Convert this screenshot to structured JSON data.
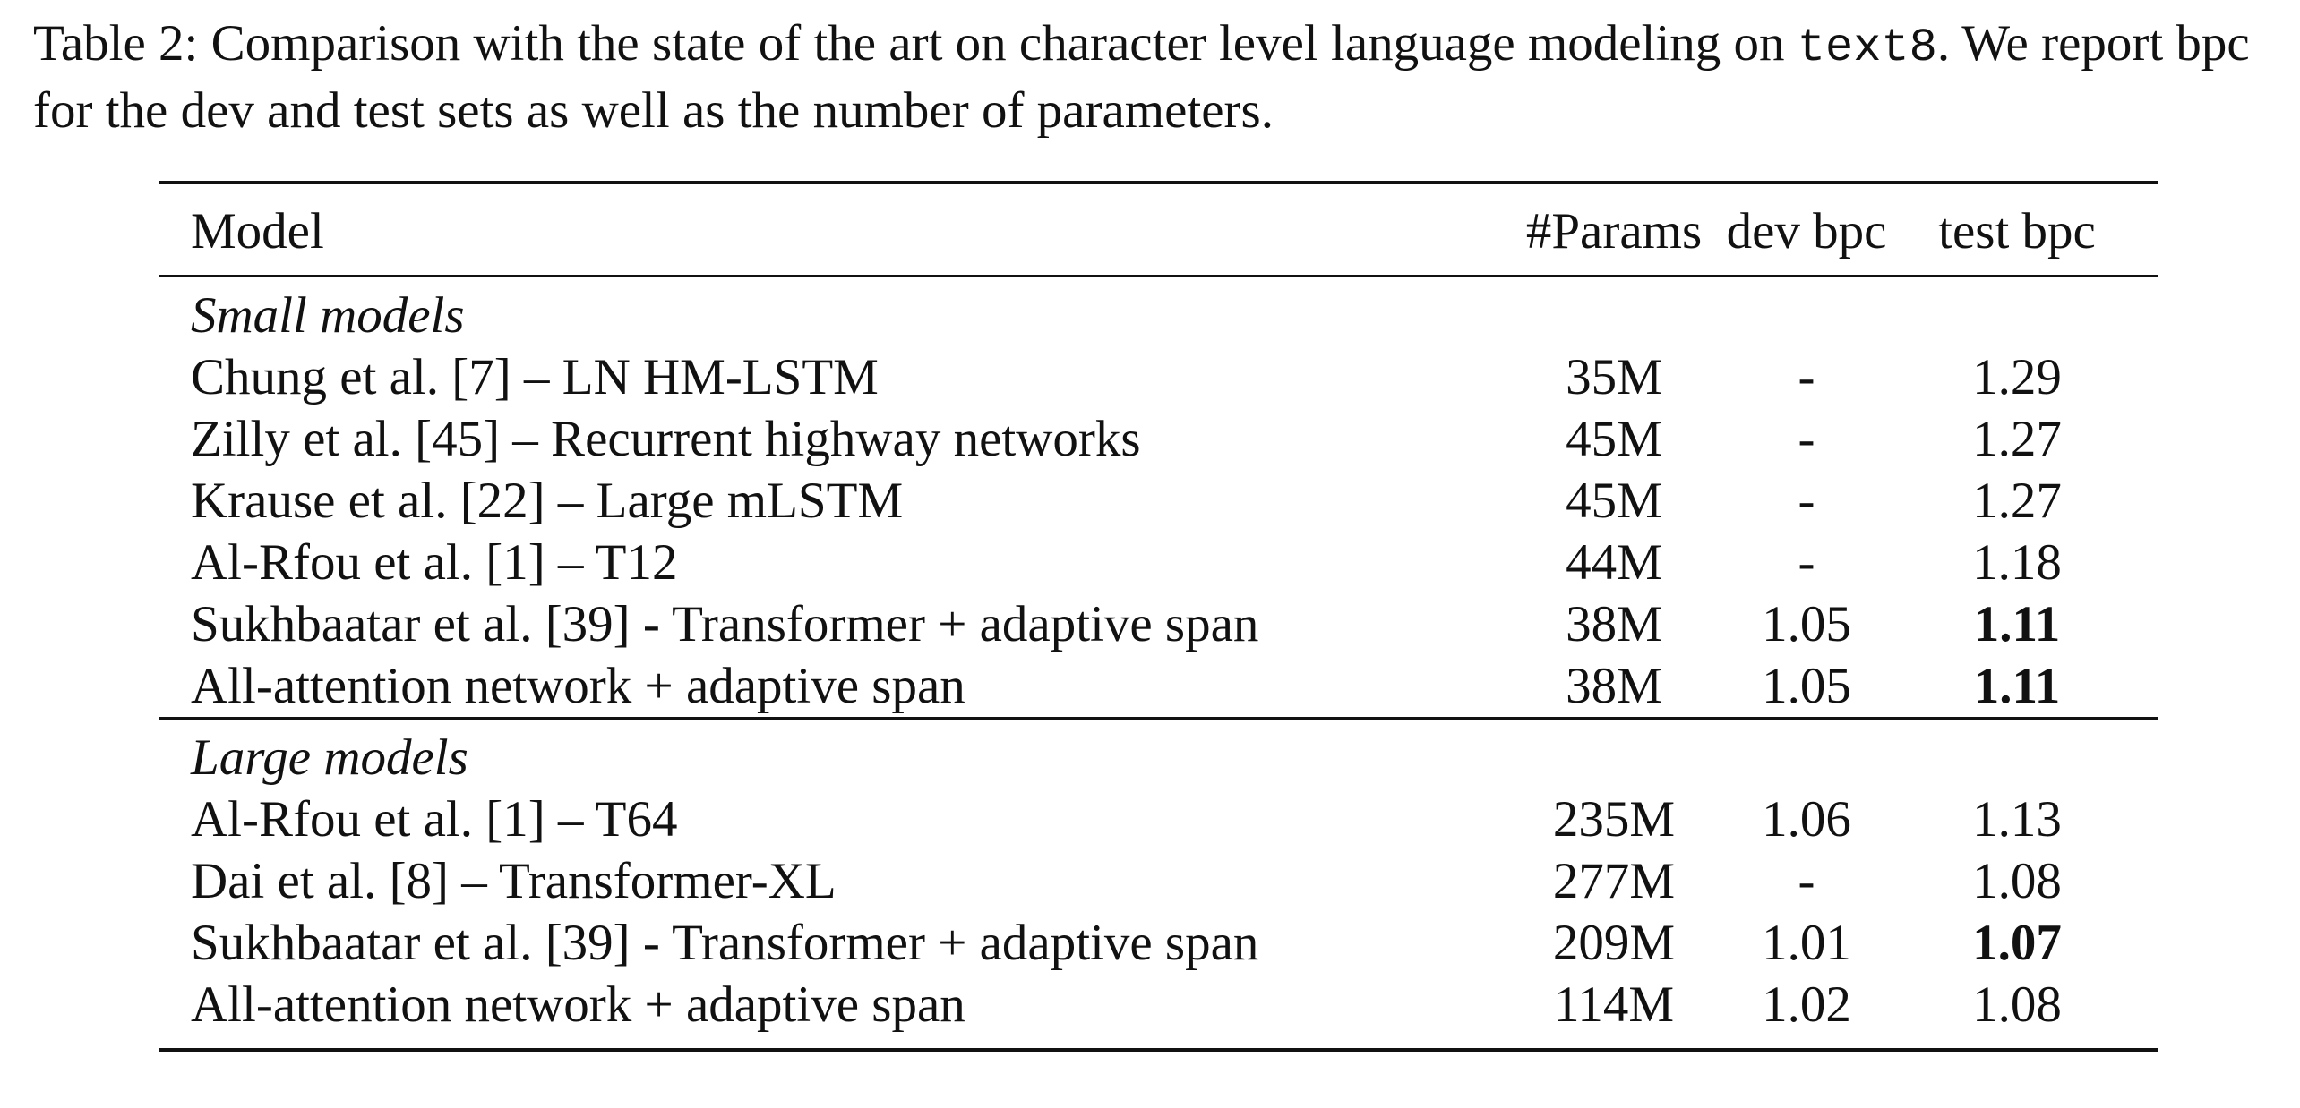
{
  "caption": {
    "prefix": "Table 2:  Comparison with the state of the art on character level language modeling on ",
    "dataset": "text8",
    "suffix": ". We report bpc for the dev and test sets as well as the number of parameters."
  },
  "table": {
    "headers": [
      "Model",
      "#Params",
      "dev bpc",
      "test bpc"
    ],
    "sections": [
      {
        "title": "Small models",
        "rows": [
          {
            "model": "Chung et al. [7] – LN HM-LSTM",
            "params": "35M",
            "dev": "-",
            "test": "1.29",
            "test_bold": false
          },
          {
            "model": "Zilly et al. [45] – Recurrent highway networks",
            "params": "45M",
            "dev": "-",
            "test": "1.27",
            "test_bold": false
          },
          {
            "model": "Krause et al. [22] – Large mLSTM",
            "params": "45M",
            "dev": "-",
            "test": "1.27",
            "test_bold": false
          },
          {
            "model": "Al-Rfou et al. [1] – T12",
            "params": "44M",
            "dev": "-",
            "test": "1.18",
            "test_bold": false
          },
          {
            "model": "Sukhbaatar et al. [39] - Transformer + adaptive span",
            "params": "38M",
            "dev": "1.05",
            "test": "1.11",
            "test_bold": true
          },
          {
            "model": "All-attention network + adaptive span",
            "params": "38M",
            "dev": "1.05",
            "test": "1.11",
            "test_bold": true
          }
        ]
      },
      {
        "title": "Large models",
        "rows": [
          {
            "model": "Al-Rfou et al. [1] – T64",
            "params": "235M",
            "dev": "1.06",
            "test": "1.13",
            "test_bold": false
          },
          {
            "model": "Dai et al. [8] – Transformer-XL",
            "params": "277M",
            "dev": "-",
            "test": "1.08",
            "test_bold": false
          },
          {
            "model": "Sukhbaatar et al. [39] - Transformer + adaptive span",
            "params": "209M",
            "dev": "1.01",
            "test": "1.07",
            "test_bold": true
          },
          {
            "model": "All-attention network + adaptive span",
            "params": "114M",
            "dev": "1.02",
            "test": "1.08",
            "test_bold": false
          }
        ]
      }
    ]
  }
}
